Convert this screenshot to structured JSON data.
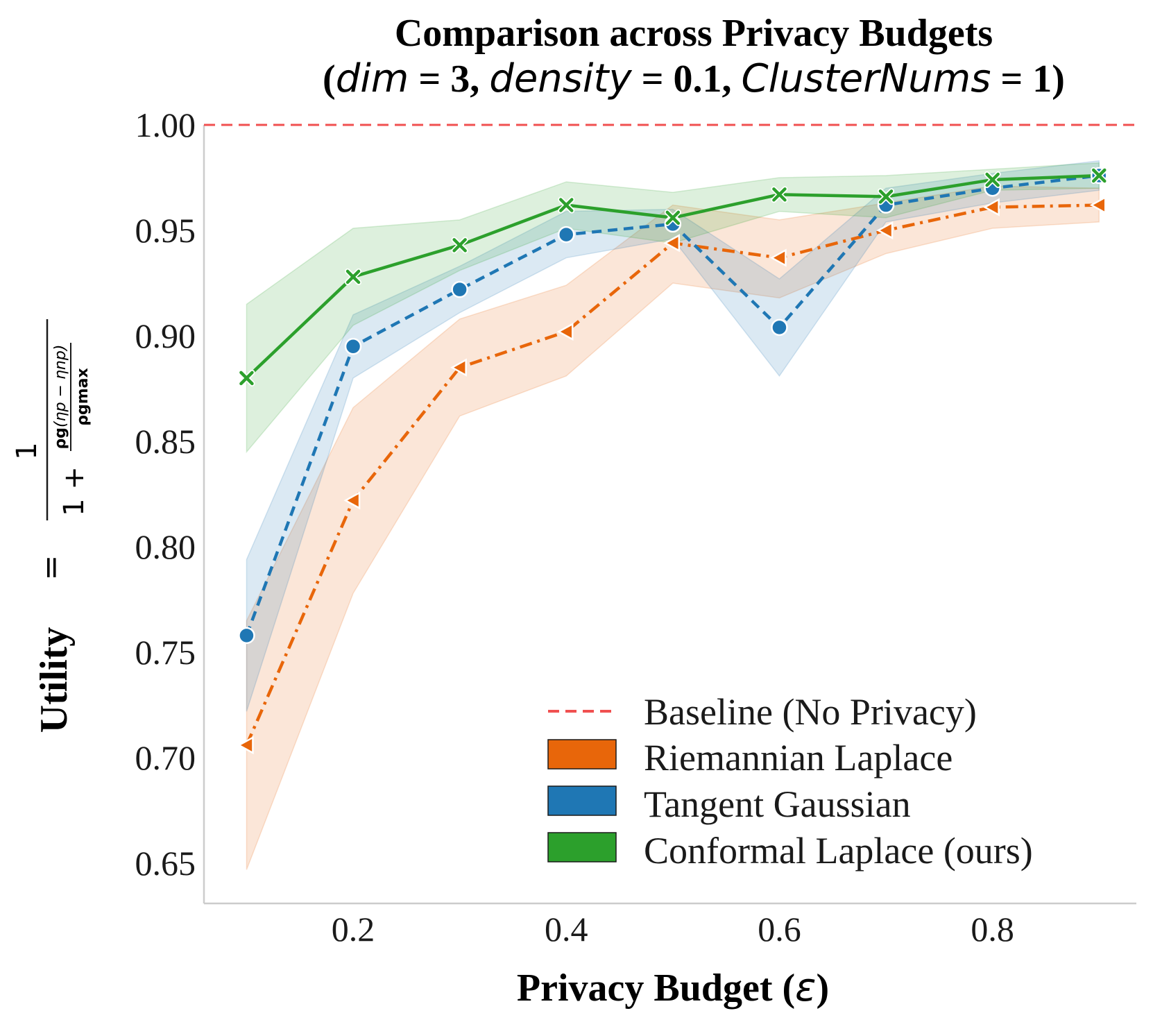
{
  "chart_data": {
    "type": "line",
    "title_line1": "Comparison across Privacy Budgets",
    "title_line2": {
      "open": "(",
      "dim_var": "dim",
      "dim_eq": " = 3, ",
      "density_var": "density",
      "density_eq": " = 0.1, ",
      "cluster_var": "ClusterNums",
      "cluster_eq": " = 1)"
    },
    "xlabel_text": "Privacy Budget (",
    "xlabel_symbol": "ε",
    "xlabel_close": ")",
    "ylabel_text": "Utility",
    "ylabel_formula": {
      "eq": "=",
      "numerator": "1",
      "one_plus": "1 +",
      "rho_g": "ρg",
      "eta_term": "(ηp − ηnp)",
      "rho_gmax": "ρgmax"
    },
    "xlim": [
      0.06,
      0.935
    ],
    "ylim": [
      0.631,
      1.0
    ],
    "xticks": [
      "0.2",
      "0.4",
      "0.6",
      "0.8"
    ],
    "xtick_values": [
      0.2,
      0.4,
      0.6,
      0.8
    ],
    "yticks": [
      "0.65",
      "0.70",
      "0.75",
      "0.80",
      "0.85",
      "0.90",
      "0.95",
      "1.00"
    ],
    "ytick_values": [
      0.65,
      0.7,
      0.75,
      0.8,
      0.85,
      0.9,
      0.95,
      1.0
    ],
    "x": [
      0.1,
      0.2,
      0.3,
      0.4,
      0.5,
      0.6,
      0.7,
      0.8,
      0.9
    ],
    "baseline": {
      "name": "Baseline (No Privacy)",
      "value": 1.0,
      "color": "#f05050"
    },
    "series": [
      {
        "name": "Riemannian Laplace",
        "color": "#e8660a",
        "marker": "triangle-left",
        "dash": "dashdot",
        "values": [
          0.706,
          0.822,
          0.885,
          0.902,
          0.944,
          0.937,
          0.95,
          0.961,
          0.962
        ],
        "upper": [
          0.765,
          0.866,
          0.908,
          0.924,
          0.962,
          0.955,
          0.963,
          0.971,
          0.97
        ],
        "lower": [
          0.647,
          0.778,
          0.862,
          0.881,
          0.925,
          0.918,
          0.939,
          0.951,
          0.954
        ]
      },
      {
        "name": "Tangent Gaussian",
        "color": "#1f77b4",
        "marker": "circle",
        "dash": "dashed",
        "values": [
          0.758,
          0.895,
          0.922,
          0.948,
          0.953,
          0.904,
          0.962,
          0.97,
          0.976
        ],
        "upper": [
          0.794,
          0.91,
          0.933,
          0.959,
          0.96,
          0.927,
          0.97,
          0.977,
          0.983
        ],
        "lower": [
          0.722,
          0.88,
          0.911,
          0.937,
          0.946,
          0.881,
          0.954,
          0.963,
          0.969
        ]
      },
      {
        "name": "Conformal Laplace (ours)",
        "color": "#2ca02c",
        "marker": "x",
        "dash": "solid",
        "values": [
          0.88,
          0.928,
          0.943,
          0.962,
          0.956,
          0.967,
          0.966,
          0.974,
          0.976
        ],
        "upper": [
          0.915,
          0.951,
          0.955,
          0.973,
          0.968,
          0.975,
          0.976,
          0.979,
          0.982
        ],
        "lower": [
          0.845,
          0.905,
          0.931,
          0.951,
          0.944,
          0.959,
          0.956,
          0.969,
          0.97
        ]
      }
    ],
    "legend_position": "lower-right"
  }
}
